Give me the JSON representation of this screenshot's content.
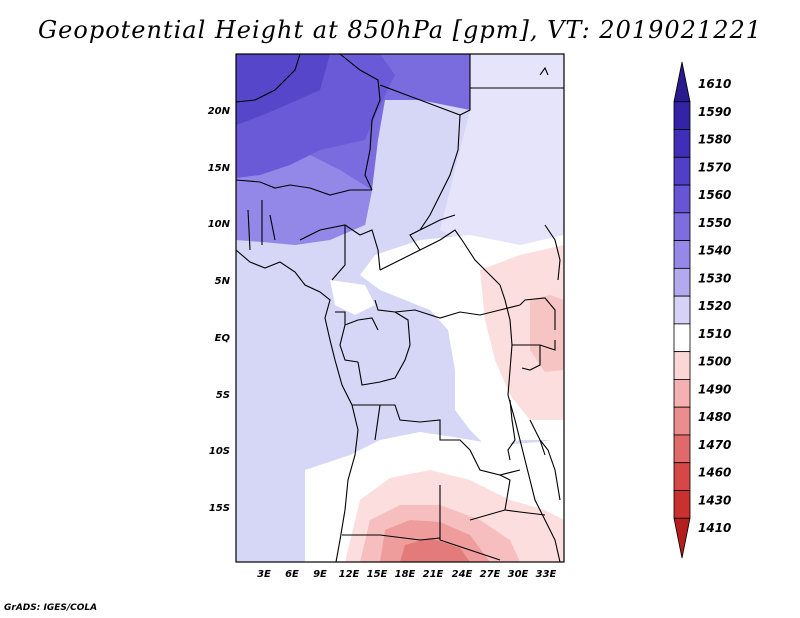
{
  "title": "Geopotential Height at 850hPa [gpm], VT: 2019021221",
  "credit": "GrADS: IGES/COLA",
  "map": {
    "lat_ticks": [
      "20N",
      "15N",
      "10N",
      "5N",
      "EQ",
      "5S",
      "10S",
      "15S"
    ],
    "lon_ticks": [
      "3E",
      "6E",
      "9E",
      "12E",
      "15E",
      "18E",
      "21E",
      "24E",
      "27E",
      "30E",
      "33E"
    ]
  },
  "colorbar": {
    "labels": [
      "1610",
      "1590",
      "1580",
      "1570",
      "1560",
      "1550",
      "1540",
      "1530",
      "1520",
      "1510",
      "1500",
      "1490",
      "1480",
      "1470",
      "1460",
      "1430",
      "1410"
    ],
    "colors": [
      "#2a1a8f",
      "#3323a6",
      "#3f2fb8",
      "#5040c8",
      "#6655d5",
      "#7d6ee0",
      "#9688e8",
      "#b2a9ef",
      "#d4d2f7",
      "#ffffff",
      "#fbd6d6",
      "#f5b1b1",
      "#ec8d8d",
      "#e06a6a",
      "#d64848",
      "#c93030",
      "#b51e1e"
    ]
  }
}
